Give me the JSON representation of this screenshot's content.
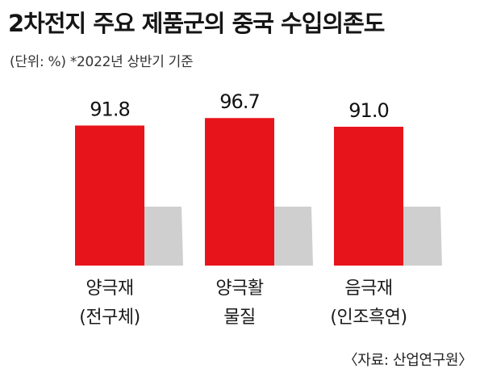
{
  "header": {
    "title": "2차전지 주요 제품군의 중국 수입의존도",
    "subtitle": "(단위: %) *2022년 상반기 기준"
  },
  "footer": {
    "source": "〈자료: 산업연구원〉"
  },
  "colors": {
    "bar": "#e8141b",
    "shadow": "#cfcfcf"
  },
  "chart_data": {
    "type": "bar",
    "categories": [
      [
        "양극재",
        "(전구체)"
      ],
      [
        "양극활",
        "물질"
      ],
      [
        "음극재",
        "(인조흑연)"
      ]
    ],
    "values": [
      91.8,
      96.7,
      91.0
    ],
    "value_labels": [
      "91.8",
      "96.7",
      "91.0"
    ],
    "title": "2차전지 주요 제품군의 중국 수입의존도",
    "unit": "%",
    "ylim": [
      0,
      100
    ],
    "grid": false,
    "legend": "none"
  }
}
